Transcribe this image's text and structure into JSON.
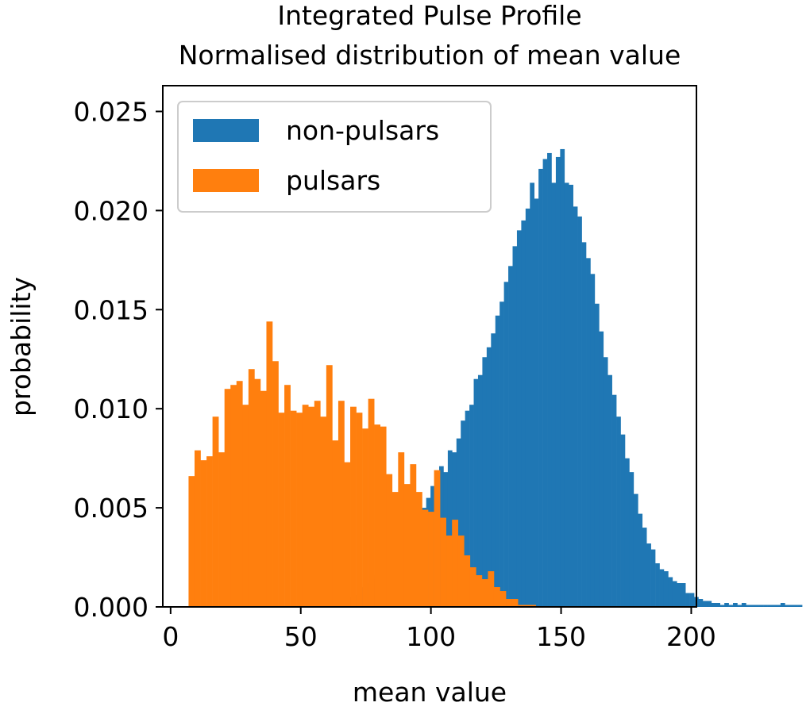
{
  "chart_data": {
    "type": "bar",
    "title": "Integrated Pulse Profile",
    "subtitle": "Normalised distribution of mean value",
    "xlabel": "mean value",
    "ylabel": "probability",
    "xlim": [
      -3,
      202
    ],
    "ylim": [
      0,
      0.0263
    ],
    "x_ticks": [
      0,
      50,
      100,
      150,
      200
    ],
    "x_tick_labels": [
      "0",
      "50",
      "100",
      "150",
      "200"
    ],
    "y_ticks": [
      0.0,
      0.005,
      0.01,
      0.015,
      0.02,
      0.025
    ],
    "y_tick_labels": [
      "0.000",
      "0.005",
      "0.010",
      "0.015",
      "0.020",
      "0.025"
    ],
    "grid": false,
    "legend_position": "top-left",
    "series": [
      {
        "name": "non-pulsars",
        "color": "#1f77b4",
        "bin_width": 1.66,
        "bin_start": 60,
        "values": [
          0.0001,
          0.0002,
          0.0002,
          0.0003,
          0.0004,
          0.0005,
          0.0006,
          0.0008,
          0.001,
          0.0012,
          0.0014,
          0.0016,
          0.0019,
          0.0021,
          0.0023,
          0.0026,
          0.0028,
          0.0031,
          0.0034,
          0.0037,
          0.0041,
          0.0045,
          0.005,
          0.0055,
          0.0061,
          0.0067,
          0.0071,
          0.0068,
          0.0079,
          0.0078,
          0.0085,
          0.0094,
          0.0099,
          0.0102,
          0.0115,
          0.0117,
          0.0126,
          0.0131,
          0.0138,
          0.0147,
          0.0154,
          0.0164,
          0.0172,
          0.0182,
          0.019,
          0.0195,
          0.0201,
          0.0214,
          0.0206,
          0.0221,
          0.0226,
          0.0229,
          0.0214,
          0.0227,
          0.0231,
          0.0214,
          0.0213,
          0.0202,
          0.0197,
          0.0184,
          0.0176,
          0.0168,
          0.0153,
          0.0139,
          0.0126,
          0.0117,
          0.0107,
          0.0096,
          0.0087,
          0.0075,
          0.0068,
          0.0057,
          0.0047,
          0.004,
          0.0032,
          0.0029,
          0.0022,
          0.0019,
          0.0018,
          0.0015,
          0.0013,
          0.0012,
          0.0012,
          0.0007,
          0.0007,
          0.0005,
          0.0004,
          0.0003,
          0.0003,
          0.0002,
          0.0002,
          0.0001,
          0.0002,
          0.0001,
          0.0002,
          0.0001,
          0.0002,
          0.0001,
          0.0001,
          0.0001,
          0.0001,
          0.0001,
          0.0001,
          0.0001,
          0.0001,
          0.0002,
          0.0001,
          0.0001,
          0.0001,
          0.0001
        ]
      },
      {
        "name": "pulsars",
        "color": "#ff7f0e",
        "bin_width": 2.3,
        "bin_start": 6.9,
        "values": [
          0.0066,
          0.0079,
          0.0074,
          0.0076,
          0.0096,
          0.0078,
          0.011,
          0.0112,
          0.0114,
          0.0102,
          0.012,
          0.0115,
          0.0109,
          0.0144,
          0.0124,
          0.0098,
          0.0112,
          0.0099,
          0.0098,
          0.0102,
          0.0101,
          0.0104,
          0.0096,
          0.0122,
          0.0084,
          0.0104,
          0.0073,
          0.0101,
          0.0098,
          0.009,
          0.0105,
          0.0092,
          0.0091,
          0.0067,
          0.0058,
          0.0078,
          0.0062,
          0.0072,
          0.0058,
          0.0049,
          0.0048,
          0.0069,
          0.0045,
          0.0036,
          0.0044,
          0.0036,
          0.0026,
          0.002,
          0.0016,
          0.0014,
          0.0018,
          0.001,
          0.0008,
          0.0004,
          0.0004,
          0.0001,
          0.0001,
          0.0001
        ]
      }
    ]
  }
}
